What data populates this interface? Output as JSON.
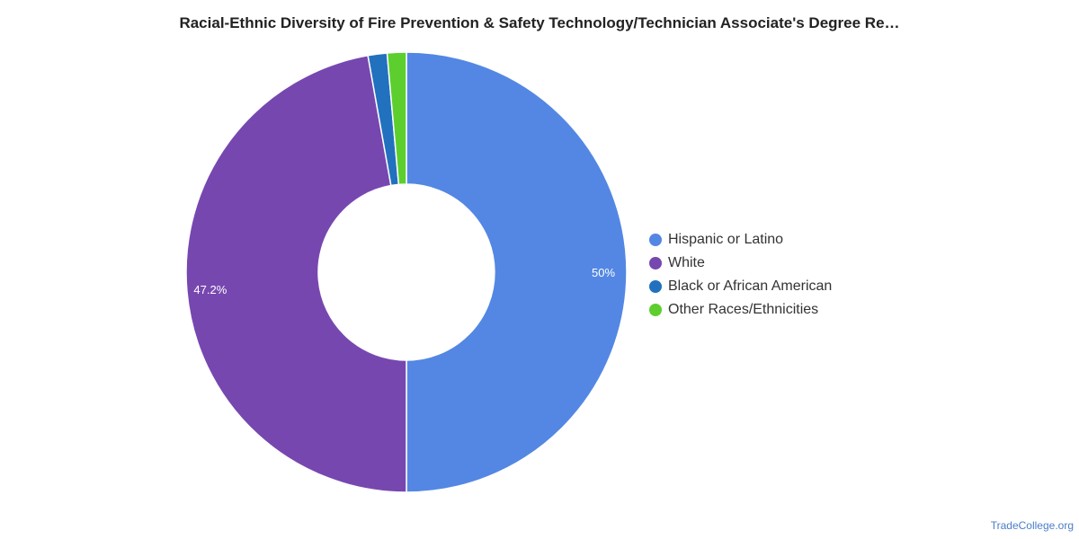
{
  "chart_data": {
    "type": "pie",
    "title": "Racial-Ethnic Diversity of Fire Prevention & Safety Technology/Technician Associate's Degree Re…",
    "categories": [
      "Hispanic or Latino",
      "White",
      "Black or African American",
      "Other Races/Ethnicities"
    ],
    "values": [
      50,
      47.2,
      1.4,
      1.4
    ],
    "data_labels": [
      "50%",
      "47.2%",
      "",
      ""
    ],
    "colors": [
      "#5387e3",
      "#7747b0",
      "#2271be",
      "#5ccf2e"
    ],
    "donut": true,
    "legend_position": "right"
  },
  "source": "TradeCollege.org"
}
